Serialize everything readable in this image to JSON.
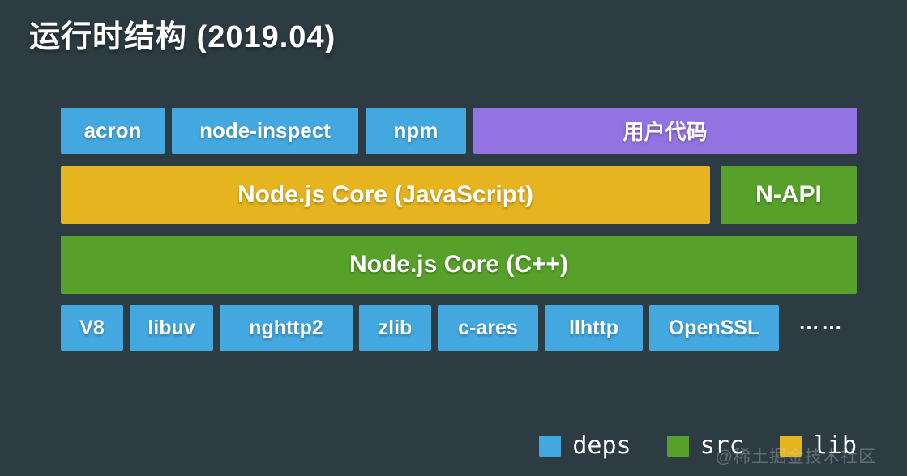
{
  "title": "运行时结构 (2019.04)",
  "colors": {
    "background": "#2d3b43",
    "deps": "#44a8e0",
    "src": "#57a12b",
    "lib": "#e6b41e",
    "user": "#9372e2"
  },
  "diagram": {
    "row1": {
      "acron": "acron",
      "node_inspect": "node-inspect",
      "npm": "npm",
      "user_code": "用户代码"
    },
    "row2": {
      "core_js": "Node.js Core (JavaScript)",
      "napi": "N-API"
    },
    "row3": {
      "core_cpp": "Node.js Core (C++)"
    },
    "row4": {
      "v8": "V8",
      "libuv": "libuv",
      "nghttp2": "nghttp2",
      "zlib": "zlib",
      "c_ares": "c-ares",
      "llhttp": "llhttp",
      "openssl": "OpenSSL",
      "more": "……"
    }
  },
  "legend": {
    "deps": "deps",
    "src": "src",
    "lib": "lib"
  },
  "watermark": "@稀土掘金技术社区"
}
